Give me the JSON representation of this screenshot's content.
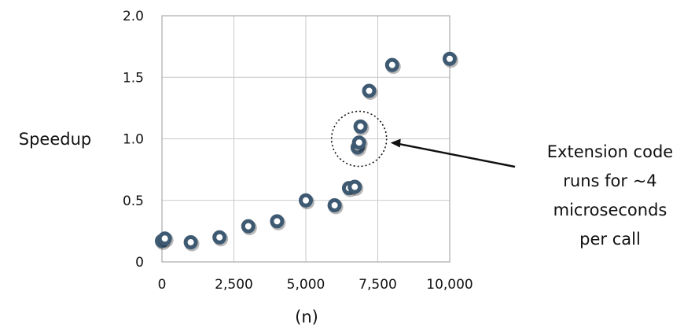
{
  "chart_data": {
    "type": "scatter",
    "xlabel": "(n)",
    "ylabel": "Speedup",
    "xlim": [
      0,
      10000
    ],
    "ylim": [
      0,
      2.0
    ],
    "xticks": [
      0,
      2500,
      5000,
      7500,
      10000
    ],
    "xtick_labels": [
      "0",
      "2,500",
      "5,000",
      "7,500",
      "10,000"
    ],
    "yticks": [
      0,
      0.5,
      1.0,
      1.5,
      2.0
    ],
    "ytick_labels": [
      "0",
      "0.5",
      "1.0",
      "1.5",
      "2.0"
    ],
    "grid": true,
    "marker_color": "#3e5a72",
    "points": [
      {
        "x": 0,
        "y": 0.17
      },
      {
        "x": 100,
        "y": 0.19
      },
      {
        "x": 1000,
        "y": 0.16
      },
      {
        "x": 2000,
        "y": 0.2
      },
      {
        "x": 3000,
        "y": 0.29
      },
      {
        "x": 4000,
        "y": 0.33
      },
      {
        "x": 5000,
        "y": 0.5
      },
      {
        "x": 6000,
        "y": 0.46
      },
      {
        "x": 6500,
        "y": 0.6
      },
      {
        "x": 6700,
        "y": 0.61
      },
      {
        "x": 6800,
        "y": 0.93
      },
      {
        "x": 6850,
        "y": 0.97
      },
      {
        "x": 6900,
        "y": 1.1
      },
      {
        "x": 7200,
        "y": 1.39
      },
      {
        "x": 8000,
        "y": 1.6
      },
      {
        "x": 10000,
        "y": 1.65
      }
    ],
    "annotation": {
      "lines": [
        "Extension code",
        "runs for ~4",
        "microseconds",
        "per call"
      ],
      "target": {
        "x": 6850,
        "y": 1.0
      }
    }
  }
}
